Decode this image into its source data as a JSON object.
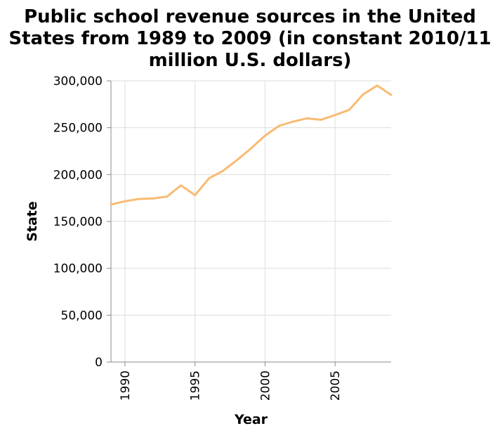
{
  "chart_data": {
    "type": "line",
    "title_lines": [
      "Public school revenue sources in the United",
      "States from 1989 to 2009 (in constant 2010/11",
      "million U.S. dollars)"
    ],
    "xlabel": "Year",
    "ylabel": "State",
    "xlim": [
      1989,
      2009
    ],
    "ylim": [
      0,
      300000
    ],
    "x_ticks": [
      1990,
      1995,
      2000,
      2005
    ],
    "x_tick_labels": [
      "1990",
      "1995",
      "2000",
      "2005"
    ],
    "y_ticks": [
      0,
      50000,
      100000,
      150000,
      200000,
      250000,
      300000
    ],
    "y_tick_labels": [
      "0",
      "50,000",
      "100,000",
      "150,000",
      "200,000",
      "250,000",
      "300,000"
    ],
    "grid": true,
    "series": [
      {
        "name": "State",
        "color": "#f8bb72",
        "x": [
          1989,
          1990,
          1991,
          1992,
          1993,
          1994,
          1995,
          1996,
          1997,
          1998,
          1999,
          2000,
          2001,
          2002,
          2003,
          2004,
          2005,
          2006,
          2007,
          2008,
          2009
        ],
        "values": [
          168000,
          171500,
          174000,
          174500,
          176500,
          188500,
          178000,
          196000,
          204000,
          215500,
          228000,
          241500,
          252000,
          256500,
          260000,
          258500,
          263500,
          269000,
          285500,
          295000,
          285000
        ]
      }
    ]
  }
}
